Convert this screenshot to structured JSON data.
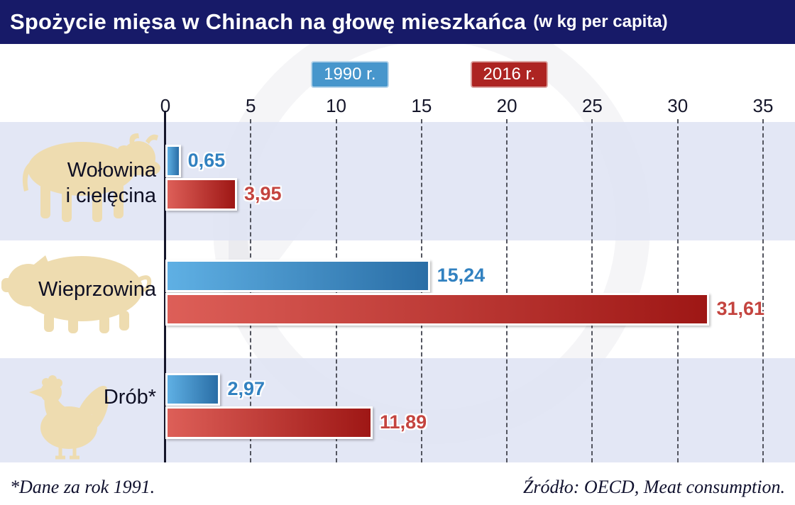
{
  "header": {
    "title": "Spożycie mięsa w Chinach na głowę mieszkańca",
    "subtitle": "(w kg per capita)"
  },
  "legend": {
    "items": [
      {
        "label": "1990 r.",
        "color": "#4796cc"
      },
      {
        "label": "2016 r.",
        "color": "#ad2422"
      }
    ]
  },
  "axis_ticks": [
    "0",
    "5",
    "10",
    "15",
    "20",
    "25",
    "30",
    "35"
  ],
  "rows": [
    {
      "label": "Wołowina\ni cielęcina",
      "icon": "cow-icon"
    },
    {
      "label": "Wieprzowina",
      "icon": "pig-icon"
    },
    {
      "label": "Drób*",
      "icon": "rooster-icon"
    }
  ],
  "chart_data": {
    "type": "bar",
    "orientation": "horizontal",
    "title": "Spożycie mięsa w Chinach na głowę mieszkańca (w kg per capita)",
    "categories": [
      "Wołowina i cielęcina",
      "Wieprzowina",
      "Drób*"
    ],
    "series": [
      {
        "name": "1990 r.",
        "color": "#3d8ec9",
        "values": [
          0.65,
          15.24,
          2.97
        ]
      },
      {
        "name": "2016 r.",
        "color": "#b02320",
        "values": [
          3.95,
          31.61,
          11.89
        ]
      }
    ],
    "value_labels": [
      [
        "0,65",
        "3,95"
      ],
      [
        "15,24",
        "31,61"
      ],
      [
        "2,97",
        "11,89"
      ]
    ],
    "xlim": [
      0,
      35
    ],
    "x_ticks": [
      0,
      5,
      10,
      15,
      20,
      25,
      30,
      35
    ],
    "grid": "vertical-dashed",
    "legend_position": "top",
    "note": "*Dane za rok 1991.",
    "source": "Źródło: OECD, Meat consumption."
  },
  "footer": {
    "note": "*Dane za rok 1991.",
    "source": "Źródło: OECD, Meat consumption."
  },
  "colors": {
    "header_bg": "#171a68",
    "band": "#dfe4f4",
    "blue": "#3d8ec9",
    "red": "#b02320"
  }
}
